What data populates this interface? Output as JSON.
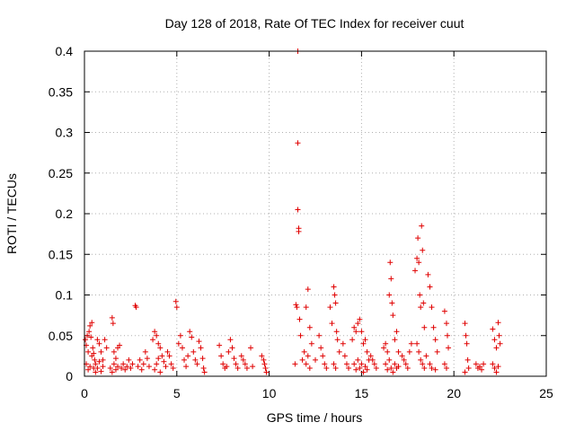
{
  "chart_data": {
    "type": "scatter",
    "title": "Day 128 of 2018, Rate Of TEC Index for receiver cuut",
    "xlabel": "GPS time / hours",
    "ylabel": "ROTI / TECUs",
    "xlim": [
      0,
      25
    ],
    "ylim": [
      0,
      0.4
    ],
    "xticks": [
      0,
      5,
      10,
      15,
      20,
      25
    ],
    "xtick_labels": [
      "0",
      "5",
      "10",
      "15",
      "20",
      "25"
    ],
    "yticks": [
      0,
      0.05,
      0.1,
      0.15,
      0.2,
      0.25,
      0.3,
      0.35,
      0.4
    ],
    "ytick_labels": [
      "0",
      "0.05",
      "0.1",
      "0.15",
      "0.2",
      "0.25",
      "0.3",
      "0.35",
      "0.4"
    ],
    "grid": true,
    "marker": "+",
    "marker_color": "#e00000",
    "series": [
      {
        "name": "ROTI",
        "points": [
          [
            0.05,
            0.045
          ],
          [
            0.1,
            0.038
          ],
          [
            0.15,
            0.05
          ],
          [
            0.2,
            0.03
          ],
          [
            0.25,
            0.055
          ],
          [
            0.3,
            0.062
          ],
          [
            0.35,
            0.048
          ],
          [
            0.4,
            0.066
          ],
          [
            0.45,
            0.035
          ],
          [
            0.5,
            0.028
          ],
          [
            0.55,
            0.02
          ],
          [
            0.6,
            0.015
          ],
          [
            0.1,
            0.015
          ],
          [
            0.2,
            0.008
          ],
          [
            0.3,
            0.012
          ],
          [
            0.4,
            0.025
          ],
          [
            0.5,
            0.01
          ],
          [
            0.6,
            0.005
          ],
          [
            0.7,
            0.045
          ],
          [
            0.8,
            0.04
          ],
          [
            0.9,
            0.03
          ],
          [
            1.0,
            0.02
          ],
          [
            1.1,
            0.045
          ],
          [
            1.2,
            0.035
          ],
          [
            0.7,
            0.01
          ],
          [
            0.8,
            0.018
          ],
          [
            0.9,
            0.006
          ],
          [
            1.0,
            0.012
          ],
          [
            1.5,
            0.072
          ],
          [
            1.55,
            0.065
          ],
          [
            1.6,
            0.03
          ],
          [
            1.7,
            0.022
          ],
          [
            1.8,
            0.035
          ],
          [
            1.9,
            0.038
          ],
          [
            1.4,
            0.01
          ],
          [
            1.5,
            0.005
          ],
          [
            1.6,
            0.015
          ],
          [
            1.7,
            0.008
          ],
          [
            1.8,
            0.012
          ],
          [
            2.0,
            0.01
          ],
          [
            2.1,
            0.015
          ],
          [
            2.2,
            0.008
          ],
          [
            2.3,
            0.012
          ],
          [
            2.4,
            0.02
          ],
          [
            2.5,
            0.01
          ],
          [
            2.6,
            0.015
          ],
          [
            2.75,
            0.087
          ],
          [
            2.8,
            0.085
          ],
          [
            2.9,
            0.012
          ],
          [
            3.0,
            0.02
          ],
          [
            3.1,
            0.008
          ],
          [
            3.2,
            0.015
          ],
          [
            3.3,
            0.03
          ],
          [
            3.4,
            0.022
          ],
          [
            3.5,
            0.012
          ],
          [
            3.7,
            0.045
          ],
          [
            3.8,
            0.055
          ],
          [
            3.9,
            0.05
          ],
          [
            4.0,
            0.04
          ],
          [
            4.1,
            0.035
          ],
          [
            4.2,
            0.025
          ],
          [
            4.3,
            0.018
          ],
          [
            4.4,
            0.012
          ],
          [
            3.8,
            0.008
          ],
          [
            3.9,
            0.015
          ],
          [
            4.0,
            0.022
          ],
          [
            4.1,
            0.005
          ],
          [
            4.5,
            0.03
          ],
          [
            4.6,
            0.025
          ],
          [
            4.7,
            0.015
          ],
          [
            4.8,
            0.01
          ],
          [
            4.95,
            0.092
          ],
          [
            5.0,
            0.085
          ],
          [
            5.1,
            0.04
          ],
          [
            5.2,
            0.05
          ],
          [
            5.3,
            0.035
          ],
          [
            5.4,
            0.02
          ],
          [
            5.5,
            0.012
          ],
          [
            5.6,
            0.025
          ],
          [
            5.7,
            0.055
          ],
          [
            5.8,
            0.048
          ],
          [
            5.9,
            0.03
          ],
          [
            6.0,
            0.02
          ],
          [
            6.1,
            0.015
          ],
          [
            6.2,
            0.043
          ],
          [
            6.3,
            0.035
          ],
          [
            6.4,
            0.022
          ],
          [
            6.45,
            0.01
          ],
          [
            6.5,
            0.005
          ],
          [
            7.3,
            0.038
          ],
          [
            7.4,
            0.025
          ],
          [
            7.5,
            0.015
          ],
          [
            7.6,
            0.01
          ],
          [
            7.7,
            0.012
          ],
          [
            7.8,
            0.03
          ],
          [
            7.9,
            0.045
          ],
          [
            8.0,
            0.035
          ],
          [
            8.1,
            0.022
          ],
          [
            8.2,
            0.015
          ],
          [
            8.3,
            0.01
          ],
          [
            8.5,
            0.025
          ],
          [
            8.6,
            0.02
          ],
          [
            8.7,
            0.015
          ],
          [
            8.8,
            0.01
          ],
          [
            9.0,
            0.035
          ],
          [
            9.1,
            0.012
          ],
          [
            9.6,
            0.025
          ],
          [
            9.7,
            0.02
          ],
          [
            9.75,
            0.015
          ],
          [
            9.8,
            0.01
          ],
          [
            9.85,
            0.005
          ],
          [
            11.4,
            0.015
          ],
          [
            11.45,
            0.088
          ],
          [
            11.5,
            0.085
          ],
          [
            11.55,
            0.4
          ],
          [
            11.55,
            0.287
          ],
          [
            11.55,
            0.205
          ],
          [
            11.6,
            0.182
          ],
          [
            11.6,
            0.178
          ],
          [
            11.65,
            0.07
          ],
          [
            11.7,
            0.05
          ],
          [
            11.8,
            0.02
          ],
          [
            11.9,
            0.03
          ],
          [
            12.0,
            0.085
          ],
          [
            12.1,
            0.107
          ],
          [
            12.2,
            0.06
          ],
          [
            12.3,
            0.04
          ],
          [
            12.0,
            0.015
          ],
          [
            12.1,
            0.025
          ],
          [
            12.2,
            0.01
          ],
          [
            12.5,
            0.02
          ],
          [
            12.7,
            0.05
          ],
          [
            12.8,
            0.035
          ],
          [
            12.9,
            0.025
          ],
          [
            13.0,
            0.015
          ],
          [
            13.1,
            0.01
          ],
          [
            13.3,
            0.085
          ],
          [
            13.4,
            0.065
          ],
          [
            13.5,
            0.11
          ],
          [
            13.55,
            0.1
          ],
          [
            13.6,
            0.09
          ],
          [
            13.65,
            0.055
          ],
          [
            13.7,
            0.045
          ],
          [
            13.8,
            0.03
          ],
          [
            13.5,
            0.015
          ],
          [
            13.6,
            0.01
          ],
          [
            14.0,
            0.04
          ],
          [
            14.1,
            0.025
          ],
          [
            14.2,
            0.015
          ],
          [
            14.3,
            0.01
          ],
          [
            14.5,
            0.045
          ],
          [
            14.6,
            0.06
          ],
          [
            14.7,
            0.055
          ],
          [
            14.8,
            0.065
          ],
          [
            14.9,
            0.07
          ],
          [
            15.0,
            0.055
          ],
          [
            15.1,
            0.04
          ],
          [
            15.2,
            0.045
          ],
          [
            15.3,
            0.03
          ],
          [
            15.4,
            0.02
          ],
          [
            14.6,
            0.015
          ],
          [
            14.7,
            0.008
          ],
          [
            14.8,
            0.02
          ],
          [
            14.9,
            0.01
          ],
          [
            15.0,
            0.015
          ],
          [
            15.1,
            0.005
          ],
          [
            15.2,
            0.012
          ],
          [
            15.3,
            0.008
          ],
          [
            15.5,
            0.025
          ],
          [
            15.6,
            0.02
          ],
          [
            15.7,
            0.015
          ],
          [
            15.8,
            0.01
          ],
          [
            16.2,
            0.035
          ],
          [
            16.3,
            0.04
          ],
          [
            16.4,
            0.03
          ],
          [
            16.5,
            0.1
          ],
          [
            16.55,
            0.14
          ],
          [
            16.6,
            0.12
          ],
          [
            16.65,
            0.09
          ],
          [
            16.7,
            0.075
          ],
          [
            16.8,
            0.045
          ],
          [
            16.9,
            0.055
          ],
          [
            17.0,
            0.03
          ],
          [
            16.3,
            0.015
          ],
          [
            16.4,
            0.008
          ],
          [
            16.5,
            0.02
          ],
          [
            16.6,
            0.01
          ],
          [
            16.7,
            0.005
          ],
          [
            16.8,
            0.015
          ],
          [
            16.9,
            0.01
          ],
          [
            17.0,
            0.012
          ],
          [
            17.2,
            0.025
          ],
          [
            17.3,
            0.02
          ],
          [
            17.4,
            0.015
          ],
          [
            17.5,
            0.01
          ],
          [
            17.6,
            0.03
          ],
          [
            17.7,
            0.04
          ],
          [
            17.9,
            0.13
          ],
          [
            18.0,
            0.145
          ],
          [
            18.05,
            0.17
          ],
          [
            18.1,
            0.14
          ],
          [
            18.15,
            0.1
          ],
          [
            18.2,
            0.085
          ],
          [
            18.25,
            0.185
          ],
          [
            18.3,
            0.155
          ],
          [
            18.35,
            0.09
          ],
          [
            18.4,
            0.06
          ],
          [
            18.0,
            0.04
          ],
          [
            18.1,
            0.03
          ],
          [
            18.2,
            0.02
          ],
          [
            18.3,
            0.015
          ],
          [
            18.4,
            0.01
          ],
          [
            18.5,
            0.025
          ],
          [
            18.6,
            0.125
          ],
          [
            18.7,
            0.11
          ],
          [
            18.8,
            0.085
          ],
          [
            18.9,
            0.06
          ],
          [
            19.0,
            0.045
          ],
          [
            19.1,
            0.03
          ],
          [
            18.7,
            0.015
          ],
          [
            18.8,
            0.01
          ],
          [
            19.0,
            0.008
          ],
          [
            19.5,
            0.08
          ],
          [
            19.6,
            0.065
          ],
          [
            19.65,
            0.05
          ],
          [
            19.7,
            0.035
          ],
          [
            19.5,
            0.015
          ],
          [
            19.6,
            0.01
          ],
          [
            20.6,
            0.065
          ],
          [
            20.65,
            0.05
          ],
          [
            20.7,
            0.04
          ],
          [
            20.75,
            0.02
          ],
          [
            20.8,
            0.01
          ],
          [
            20.6,
            0.005
          ],
          [
            21.2,
            0.015
          ],
          [
            21.3,
            0.01
          ],
          [
            21.4,
            0.012
          ],
          [
            21.5,
            0.008
          ],
          [
            21.6,
            0.015
          ],
          [
            22.1,
            0.058
          ],
          [
            22.2,
            0.045
          ],
          [
            22.3,
            0.035
          ],
          [
            22.4,
            0.066
          ],
          [
            22.45,
            0.05
          ],
          [
            22.5,
            0.04
          ],
          [
            22.1,
            0.015
          ],
          [
            22.2,
            0.01
          ],
          [
            22.3,
            0.005
          ],
          [
            22.4,
            0.012
          ]
        ]
      }
    ]
  }
}
